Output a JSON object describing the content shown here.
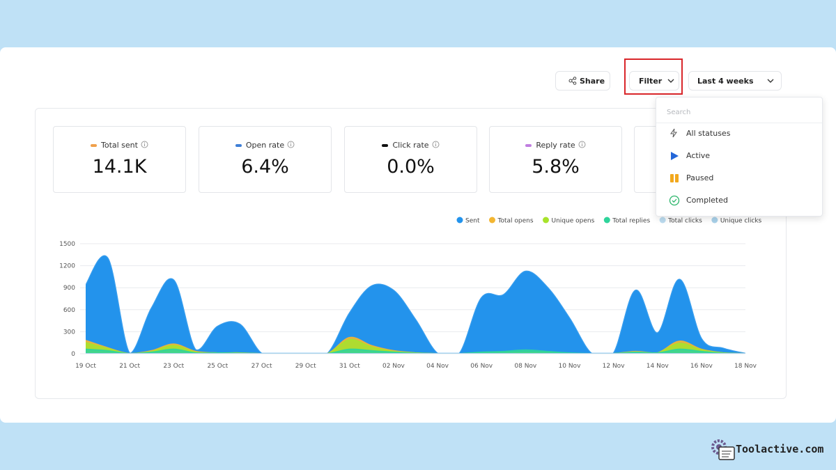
{
  "toolbar": {
    "share": "Share",
    "filter": "Filter",
    "range": "Last 4 weeks"
  },
  "stats": [
    {
      "label": "Total sent",
      "value": "14.1K",
      "color": "#f0a04b"
    },
    {
      "label": "Open rate",
      "value": "6.4%",
      "color": "#3f7fd6"
    },
    {
      "label": "Click rate",
      "value": "0.0%",
      "color": "#111111"
    },
    {
      "label": "Reply rate",
      "value": "5.8%",
      "color": "#c07ee0"
    }
  ],
  "dropdown": {
    "search": "Search",
    "items": [
      "All statuses",
      "Active",
      "Paused",
      "Completed"
    ]
  },
  "chart_data": {
    "type": "area",
    "categories": [
      "19 Oct",
      null,
      "21 Oct",
      null,
      "23 Oct",
      null,
      "25 Oct",
      null,
      "27 Oct",
      null,
      "29 Oct",
      null,
      "31 Oct",
      null,
      "02 Nov",
      null,
      "04 Nov",
      null,
      "06 Nov",
      null,
      "08 Nov",
      null,
      "10 Nov",
      null,
      "12 Nov",
      null,
      "14 Nov",
      null,
      "16 Nov",
      null,
      "18 Nov"
    ],
    "series": [
      {
        "name": "Sent",
        "color": "#2393ec",
        "values": [
          930,
          1300,
          0,
          620,
          1000,
          50,
          370,
          400,
          0,
          0,
          0,
          0,
          550,
          920,
          860,
          460,
          0,
          0,
          760,
          800,
          1120,
          900,
          480,
          0,
          0,
          860,
          280,
          1010,
          200,
          70,
          0
        ]
      },
      {
        "name": "Total opens",
        "color": "#f3b632",
        "values": [
          180,
          80,
          0,
          40,
          130,
          30,
          10,
          10,
          0,
          0,
          0,
          0,
          220,
          110,
          40,
          10,
          0,
          0,
          10,
          10,
          20,
          10,
          0,
          0,
          0,
          30,
          10,
          170,
          60,
          10,
          0
        ]
      },
      {
        "name": "Unique opens",
        "color": "#a8e32b",
        "values": [
          150,
          70,
          0,
          30,
          110,
          20,
          10,
          10,
          0,
          0,
          0,
          0,
          190,
          90,
          30,
          10,
          0,
          0,
          10,
          10,
          20,
          10,
          0,
          0,
          0,
          20,
          10,
          140,
          50,
          10,
          0
        ]
      },
      {
        "name": "Total replies",
        "color": "#2fd49b",
        "values": [
          60,
          40,
          0,
          20,
          60,
          10,
          10,
          5,
          0,
          0,
          0,
          0,
          60,
          40,
          20,
          5,
          0,
          0,
          20,
          30,
          50,
          30,
          10,
          0,
          0,
          20,
          10,
          60,
          30,
          5,
          0
        ]
      },
      {
        "name": "Total clicks",
        "color": "#bcdcf0",
        "values": [
          0,
          0,
          0,
          0,
          0,
          0,
          0,
          0,
          0,
          0,
          0,
          0,
          0,
          0,
          0,
          0,
          0,
          0,
          0,
          0,
          0,
          0,
          0,
          0,
          0,
          0,
          0,
          0,
          0,
          0,
          0
        ]
      },
      {
        "name": "Unique clicks",
        "color": "#a9d1ea",
        "values": [
          0,
          0,
          0,
          0,
          0,
          0,
          0,
          0,
          0,
          0,
          0,
          0,
          0,
          0,
          0,
          0,
          0,
          0,
          0,
          0,
          0,
          0,
          0,
          0,
          0,
          0,
          0,
          0,
          0,
          0,
          0
        ]
      }
    ],
    "ylim": [
      0,
      1500
    ],
    "yticks": [
      0,
      300,
      600,
      900,
      1200,
      1500
    ],
    "grid": true
  },
  "watermark": "Toolactive.com"
}
